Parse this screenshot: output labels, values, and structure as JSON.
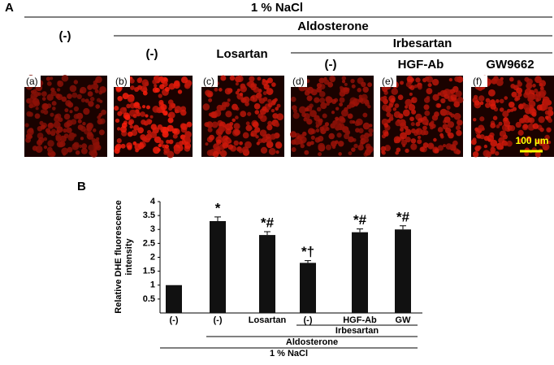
{
  "panel_a": {
    "label": "A",
    "salt": "1 % NaCl",
    "no_aldo": "(-)",
    "aldosterone": "Aldosterone",
    "aldo_none": "(-)",
    "losartan": "Losartan",
    "irbesartan": "Irbesartan",
    "irb_none": "(-)",
    "hgf": "HGF-Ab",
    "gw": "GW9662",
    "image_tags": [
      "(a)",
      "(b)",
      "(c)",
      "(d)",
      "(e)",
      "(f)"
    ],
    "scale_bar": "100 µm"
  },
  "chart_data": {
    "type": "bar",
    "panel_label": "B",
    "ylabel_lines": [
      "Relative DHE fluorescence",
      "intensity"
    ],
    "categories": [
      "(-)",
      "(-)",
      "Losartan",
      "(-)",
      "HGF-Ab",
      "GW"
    ],
    "values": [
      1.0,
      3.3,
      2.8,
      1.8,
      2.9,
      3.0
    ],
    "errors": [
      null,
      0.15,
      0.12,
      0.08,
      0.12,
      0.13
    ],
    "annotations": [
      null,
      "*",
      "*#",
      "*†",
      "*#",
      "*#"
    ],
    "color": "#111111",
    "ylim": [
      0,
      4
    ],
    "yticks": [
      0.5,
      1,
      1.5,
      2,
      2.5,
      3,
      3.5,
      4
    ],
    "groups": [
      {
        "label": "Irbesartan",
        "from": 3,
        "to": 5
      },
      {
        "label": "Aldosterone",
        "from": 1,
        "to": 5
      },
      {
        "label": "1 % NaCl",
        "from": 0,
        "to": 5
      }
    ]
  }
}
